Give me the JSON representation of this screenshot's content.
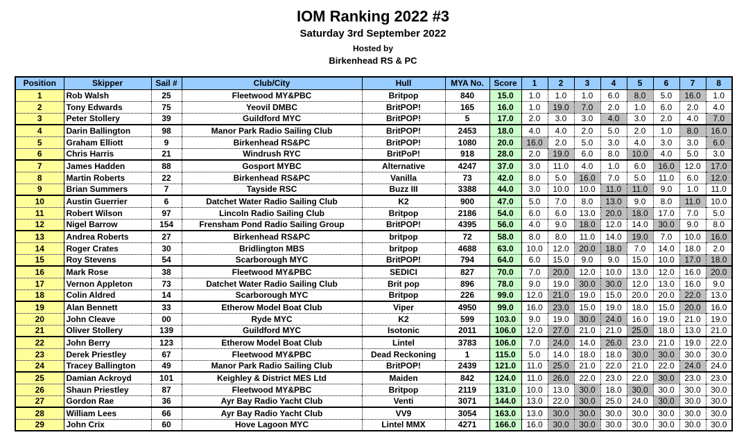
{
  "header": {
    "title": "IOM Ranking 2022 #3",
    "subtitle": "Saturday 3rd September 2022",
    "hosted_by": "Hosted by",
    "host_club": "Birkenhead RS & PC"
  },
  "colors": {
    "header_bg": "#99CCFF",
    "position_bg": "#FFFF99",
    "score_bg": "#CCFFCC",
    "discard_bg": "#C0C0C0"
  },
  "chart_data": {
    "type": "table",
    "title": "IOM Ranking 2022 #3",
    "columns": [
      "Position",
      "Skipper",
      "Sail #",
      "Club/City",
      "Hull",
      "MYA No.",
      "Score",
      "1",
      "2",
      "3",
      "4",
      "5",
      "6",
      "7",
      "8"
    ],
    "rows": [
      {
        "position": "1",
        "skipper": "Rob Walsh",
        "sail": "25",
        "club": "Fleetwood MY&PBC",
        "hull": "Britpop",
        "mya": "840",
        "score": "15.0",
        "races": [
          "1.0",
          "1.0",
          "1.0",
          "6.0",
          "8.0",
          "5.0",
          "16.0",
          "1.0"
        ],
        "discards": [
          4,
          6
        ]
      },
      {
        "position": "2",
        "skipper": "Tony Edwards",
        "sail": "75",
        "club": "Yeovil DMBC",
        "hull": "BritPOP!",
        "mya": "165",
        "score": "16.0",
        "races": [
          "1.0",
          "19.0",
          "7.0",
          "2.0",
          "1.0",
          "6.0",
          "2.0",
          "4.0"
        ],
        "discards": [
          1,
          2
        ]
      },
      {
        "position": "3",
        "skipper": "Peter Stollery",
        "sail": "39",
        "club": "Guildford MYC",
        "hull": "BritPOP!",
        "mya": "5",
        "score": "17.0",
        "races": [
          "2.0",
          "3.0",
          "3.0",
          "4.0",
          "3.0",
          "2.0",
          "4.0",
          "7.0"
        ],
        "discards": [
          3,
          7
        ]
      },
      {
        "position": "4",
        "skipper": "Darin Ballington",
        "sail": "98",
        "club": "Manor Park Radio Sailing Club",
        "hull": "BritPOP!",
        "mya": "2453",
        "score": "18.0",
        "races": [
          "4.0",
          "4.0",
          "2.0",
          "5.0",
          "2.0",
          "1.0",
          "8.0",
          "16.0"
        ],
        "discards": [
          6,
          7
        ]
      },
      {
        "position": "5",
        "skipper": "Graham Elliott",
        "sail": "9",
        "club": "Birkenhead RS&PC",
        "hull": "BritPOP!",
        "mya": "1080",
        "score": "20.0",
        "races": [
          "16.0",
          "2.0",
          "5.0",
          "3.0",
          "4.0",
          "3.0",
          "3.0",
          "6.0"
        ],
        "discards": [
          0,
          7
        ]
      },
      {
        "position": "6",
        "skipper": "Chris Harris",
        "sail": "21",
        "club": "Windrush RYC",
        "hull": "BritPoP!",
        "mya": "918",
        "score": "28.0",
        "races": [
          "2.0",
          "19.0",
          "6.0",
          "8.0",
          "10.0",
          "4.0",
          "5.0",
          "3.0"
        ],
        "discards": [
          1,
          4
        ]
      },
      {
        "position": "7",
        "skipper": "James Hadden",
        "sail": "88",
        "club": "Gosport MYBC",
        "hull": "Alternative",
        "mya": "4247",
        "score": "37.0",
        "races": [
          "3.0",
          "11.0",
          "4.0",
          "1.0",
          "6.0",
          "16.0",
          "12.0",
          "17.0"
        ],
        "discards": [
          5,
          7
        ]
      },
      {
        "position": "8",
        "skipper": "Martin Roberts",
        "sail": "22",
        "club": "Birkenhead RS&PC",
        "hull": "Vanilla",
        "mya": "73",
        "score": "42.0",
        "races": [
          "8.0",
          "5.0",
          "16.0",
          "7.0",
          "5.0",
          "11.0",
          "6.0",
          "12.0"
        ],
        "discards": [
          2,
          7
        ]
      },
      {
        "position": "9",
        "skipper": "Brian Summers",
        "sail": "7",
        "club": "Tayside RSC",
        "hull": "Buzz III",
        "mya": "3388",
        "score": "44.0",
        "races": [
          "3.0",
          "10.0",
          "10.0",
          "11.0",
          "11.0",
          "9.0",
          "1.0",
          "11.0"
        ],
        "discards": [
          3,
          4
        ]
      },
      {
        "position": "10",
        "skipper": "Austin Guerrier",
        "sail": "6",
        "club": "Datchet Water Radio Sailing Club",
        "hull": "K2",
        "mya": "900",
        "score": "47.0",
        "races": [
          "5.0",
          "7.0",
          "8.0",
          "13.0",
          "9.0",
          "8.0",
          "11.0",
          "10.0"
        ],
        "discards": [
          3,
          6
        ]
      },
      {
        "position": "11",
        "skipper": "Robert Wilson",
        "sail": "97",
        "club": "Lincoln Radio Sailing Club",
        "hull": "Britpop",
        "mya": "2186",
        "score": "54.0",
        "races": [
          "6.0",
          "6.0",
          "13.0",
          "20.0",
          "18.0",
          "17.0",
          "7.0",
          "5.0"
        ],
        "discards": [
          3,
          4
        ]
      },
      {
        "position": "12",
        "skipper": "Nigel Barrow",
        "sail": "154",
        "club": "Frensham Pond Radio Sailing Group",
        "hull": "BritPOP!",
        "mya": "4395",
        "score": "56.0",
        "races": [
          "4.0",
          "9.0",
          "18.0",
          "12.0",
          "14.0",
          "30.0",
          "9.0",
          "8.0"
        ],
        "discards": [
          2,
          5
        ]
      },
      {
        "position": "13",
        "skipper": "Andrea Roberts",
        "sail": "27",
        "club": "Birkenhead RS&PC",
        "hull": "britpop",
        "mya": "72",
        "score": "58.0",
        "races": [
          "8.0",
          "8.0",
          "11.0",
          "14.0",
          "19.0",
          "7.0",
          "10.0",
          "16.0"
        ],
        "discards": [
          4,
          7
        ]
      },
      {
        "position": "14",
        "skipper": "Roger Crates",
        "sail": "30",
        "club": "Bridlington MBS",
        "hull": "britpop",
        "mya": "4688",
        "score": "63.0",
        "races": [
          "10.0",
          "12.0",
          "20.0",
          "18.0",
          "7.0",
          "14.0",
          "18.0",
          "2.0"
        ],
        "discards": [
          2,
          3
        ]
      },
      {
        "position": "15",
        "skipper": "Roy Stevens",
        "sail": "54",
        "club": "Scarborough MYC",
        "hull": "BritPOP!",
        "mya": "794",
        "score": "64.0",
        "races": [
          "6.0",
          "15.0",
          "9.0",
          "9.0",
          "15.0",
          "10.0",
          "17.0",
          "18.0"
        ],
        "discards": [
          6,
          7
        ]
      },
      {
        "position": "16",
        "skipper": "Mark Rose",
        "sail": "38",
        "club": "Fleetwood MY&PBC",
        "hull": "SEDICI",
        "mya": "827",
        "score": "70.0",
        "races": [
          "7.0",
          "20.0",
          "12.0",
          "10.0",
          "13.0",
          "12.0",
          "16.0",
          "20.0"
        ],
        "discards": [
          1,
          7
        ]
      },
      {
        "position": "17",
        "skipper": "Vernon Appleton",
        "sail": "73",
        "club": "Datchet Water Radio Sailing Club",
        "hull": "Brit pop",
        "mya": "896",
        "score": "78.0",
        "races": [
          "9.0",
          "19.0",
          "30.0",
          "30.0",
          "12.0",
          "13.0",
          "16.0",
          "9.0"
        ],
        "discards": [
          2,
          3
        ]
      },
      {
        "position": "18",
        "skipper": "Colin Aldred",
        "sail": "14",
        "club": "Scarborough MYC",
        "hull": "Britpop",
        "mya": "226",
        "score": "99.0",
        "races": [
          "12.0",
          "21.0",
          "19.0",
          "15.0",
          "20.0",
          "20.0",
          "22.0",
          "13.0"
        ],
        "discards": [
          1,
          6
        ]
      },
      {
        "position": "19",
        "skipper": "Alan Bennett",
        "sail": "33",
        "club": "Etherow Model Boat Club",
        "hull": "Viper",
        "mya": "4950",
        "score": "99.0",
        "races": [
          "16.0",
          "23.0",
          "15.0",
          "19.0",
          "18.0",
          "15.0",
          "20.0",
          "16.0"
        ],
        "discards": [
          1,
          6
        ]
      },
      {
        "position": "20",
        "skipper": "John Cleave",
        "sail": "00",
        "club": "Ryde MYC",
        "hull": "K2",
        "mya": "599",
        "score": "103.0",
        "races": [
          "9.0",
          "19.0",
          "30.0",
          "24.0",
          "16.0",
          "19.0",
          "21.0",
          "19.0"
        ],
        "discards": [
          2,
          3
        ]
      },
      {
        "position": "21",
        "skipper": "Oliver Stollery",
        "sail": "139",
        "club": "Guildford MYC",
        "hull": "Isotonic",
        "mya": "2011",
        "score": "106.0",
        "races": [
          "12.0",
          "27.0",
          "21.0",
          "21.0",
          "25.0",
          "18.0",
          "13.0",
          "21.0"
        ],
        "discards": [
          1,
          4
        ]
      },
      {
        "position": "22",
        "skipper": "John Berry",
        "sail": "123",
        "club": "Etherow Model Boat Club",
        "hull": "Lintel",
        "mya": "3783",
        "score": "106.0",
        "races": [
          "7.0",
          "24.0",
          "14.0",
          "26.0",
          "23.0",
          "21.0",
          "19.0",
          "22.0"
        ],
        "discards": [
          1,
          3
        ]
      },
      {
        "position": "23",
        "skipper": "Derek Priestley",
        "sail": "67",
        "club": "Fleetwood MY&PBC",
        "hull": "Dead Reckoning",
        "mya": "1",
        "score": "115.0",
        "races": [
          "5.0",
          "14.0",
          "18.0",
          "18.0",
          "30.0",
          "30.0",
          "30.0",
          "30.0"
        ],
        "discards": [
          4,
          5
        ]
      },
      {
        "position": "24",
        "skipper": "Tracey Ballington",
        "sail": "49",
        "club": "Manor Park Radio Sailing Club",
        "hull": "BritPOP!",
        "mya": "2439",
        "score": "121.0",
        "races": [
          "11.0",
          "25.0",
          "21.0",
          "22.0",
          "21.0",
          "22.0",
          "24.0",
          "24.0"
        ],
        "discards": [
          1,
          6
        ]
      },
      {
        "position": "25",
        "skipper": "Damian Ackroyd",
        "sail": "101",
        "club": "Keighley & District MES Ltd",
        "hull": "Maiden",
        "mya": "842",
        "score": "124.0",
        "races": [
          "11.0",
          "26.0",
          "22.0",
          "23.0",
          "22.0",
          "30.0",
          "23.0",
          "23.0"
        ],
        "discards": [
          1,
          5
        ]
      },
      {
        "position": "26",
        "skipper": "Shaun Priestley",
        "sail": "87",
        "club": "Fleetwood MY&PBC",
        "hull": "Britpop",
        "mya": "2119",
        "score": "131.0",
        "races": [
          "10.0",
          "13.0",
          "30.0",
          "18.0",
          "30.0",
          "30.0",
          "30.0",
          "30.0"
        ],
        "discards": [
          2,
          4
        ]
      },
      {
        "position": "27",
        "skipper": "Gordon Rae",
        "sail": "36",
        "club": "Ayr Bay Radio Yacht Club",
        "hull": "Venti",
        "mya": "3071",
        "score": "144.0",
        "races": [
          "13.0",
          "22.0",
          "30.0",
          "25.0",
          "24.0",
          "30.0",
          "30.0",
          "30.0"
        ],
        "discards": [
          2,
          5
        ]
      },
      {
        "position": "28",
        "skipper": "William Lees",
        "sail": "66",
        "club": "Ayr Bay Radio Yacht Club",
        "hull": "VV9",
        "mya": "3054",
        "score": "163.0",
        "races": [
          "13.0",
          "30.0",
          "30.0",
          "30.0",
          "30.0",
          "30.0",
          "30.0",
          "30.0"
        ],
        "discards": [
          1,
          2
        ]
      },
      {
        "position": "29",
        "skipper": "John Crix",
        "sail": "60",
        "club": "Hove Lagoon MYC",
        "hull": "Lintel MMX",
        "mya": "4271",
        "score": "166.0",
        "races": [
          "16.0",
          "30.0",
          "30.0",
          "30.0",
          "30.0",
          "30.0",
          "30.0",
          "30.0"
        ],
        "discards": [
          1,
          2
        ]
      }
    ]
  }
}
